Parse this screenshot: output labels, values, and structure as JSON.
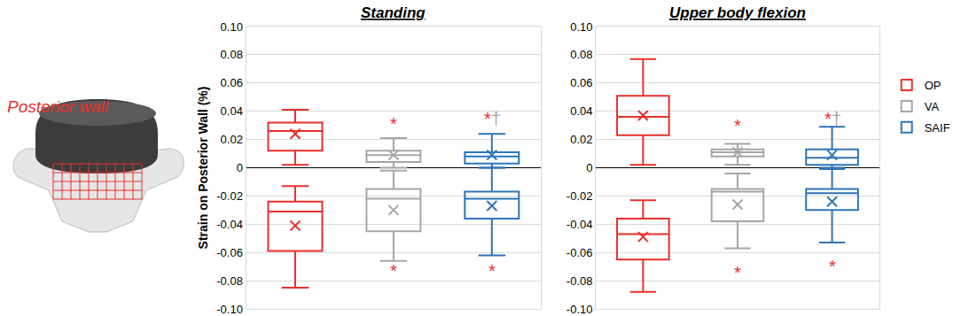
{
  "figure_label": "Posterior wall",
  "chart_data": [
    {
      "type": "box",
      "title": "Standing",
      "y_label": "Strain on Posterior Wall (%)",
      "ylim": [
        -0.1,
        0.1
      ],
      "yticks": [
        {
          "value": -0.1,
          "label": "-0.10"
        },
        -0.08,
        -0.06,
        -0.04,
        -0.02,
        0,
        0.02,
        0.04,
        0.06,
        0.08,
        {
          "value": 0.1,
          "label": "0.10"
        }
      ],
      "grid": true,
      "tick_labels": "y",
      "series": [
        {
          "name": "OP",
          "color": "#e8302a",
          "marker": "x",
          "positive": {
            "lower": 0.002,
            "q1": 0.012,
            "median": 0.026,
            "q3": 0.032,
            "upper": 0.041,
            "mean": 0.024
          },
          "negative": {
            "lower": -0.085,
            "q1": -0.059,
            "median": -0.031,
            "q3": -0.024,
            "upper": -0.013,
            "mean": -0.041
          }
        },
        {
          "name": "VA",
          "color": "#a6a6a6",
          "marker": "x",
          "positive": {
            "lower": 0.0,
            "q1": 0.004,
            "median": 0.009,
            "q3": 0.012,
            "upper": 0.021,
            "mean": 0.009
          },
          "negative": {
            "lower": -0.066,
            "q1": -0.045,
            "median": -0.022,
            "q3": -0.015,
            "upper": -0.002,
            "mean": -0.03
          }
        },
        {
          "name": "SAIF",
          "color": "#2e75b6",
          "marker": "x",
          "positive": {
            "lower": 0.0,
            "q1": 0.003,
            "median": 0.008,
            "q3": 0.011,
            "upper": 0.024,
            "mean": 0.009
          },
          "negative": {
            "lower": -0.062,
            "q1": -0.036,
            "median": -0.022,
            "q3": -0.017,
            "upper": 0.0,
            "mean": -0.027
          }
        }
      ],
      "annotations": [
        {
          "text": "*",
          "x": 1,
          "y": 0.031,
          "color": "#e8302a"
        },
        {
          "text": "*",
          "x": 2,
          "y": 0.035,
          "color": "#e8302a"
        },
        {
          "text": "†",
          "x": 2,
          "y": 0.035,
          "color": "#a6a6a6"
        },
        {
          "text": "*",
          "x": 1,
          "y": -0.073,
          "color": "#e8302a"
        },
        {
          "text": "*",
          "x": 2,
          "y": -0.073,
          "color": "#e8302a"
        }
      ]
    },
    {
      "type": "box",
      "title": "Upper body flexion",
      "ylim": [
        -0.1,
        0.1
      ],
      "yticks": [
        {
          "value": -0.1,
          "label": "-0.10"
        },
        -0.08,
        -0.06,
        -0.04,
        -0.02,
        0,
        0.02,
        0.04,
        0.06,
        0.08,
        {
          "value": 0.1,
          "label": "0.10"
        }
      ],
      "grid": true,
      "tick_labels": "y",
      "legend": "right",
      "series": [
        {
          "name": "OP",
          "color": "#e8302a",
          "marker": "x",
          "positive": {
            "lower": 0.002,
            "q1": 0.023,
            "median": 0.036,
            "q3": 0.051,
            "upper": 0.077,
            "mean": 0.037
          },
          "negative": {
            "lower": -0.088,
            "q1": -0.065,
            "median": -0.047,
            "q3": -0.036,
            "upper": -0.023,
            "mean": -0.049
          }
        },
        {
          "name": "VA",
          "color": "#a6a6a6",
          "marker": "x",
          "positive": {
            "lower": 0.002,
            "q1": 0.008,
            "median": 0.011,
            "q3": 0.013,
            "upper": 0.017,
            "mean": 0.011
          },
          "negative": {
            "lower": -0.057,
            "q1": -0.038,
            "median": -0.017,
            "q3": -0.015,
            "upper": -0.004,
            "mean": -0.026
          }
        },
        {
          "name": "SAIF",
          "color": "#2e75b6",
          "marker": "x",
          "positive": {
            "lower": 0.0,
            "q1": 0.002,
            "median": 0.007,
            "q3": 0.013,
            "upper": 0.029,
            "mean": 0.009
          },
          "negative": {
            "lower": -0.053,
            "q1": -0.03,
            "median": -0.018,
            "q3": -0.015,
            "upper": -0.001,
            "mean": -0.024
          }
        }
      ],
      "annotations": [
        {
          "text": "*",
          "x": 1,
          "y": 0.03,
          "color": "#e8302a"
        },
        {
          "text": "*",
          "x": 2,
          "y": 0.035,
          "color": "#e8302a"
        },
        {
          "text": "†",
          "x": 2,
          "y": 0.035,
          "color": "#a6a6a6"
        },
        {
          "text": "*",
          "x": 1,
          "y": -0.074,
          "color": "#e8302a"
        },
        {
          "text": "*",
          "x": 2,
          "y": -0.07,
          "color": "#e8302a"
        }
      ]
    }
  ]
}
